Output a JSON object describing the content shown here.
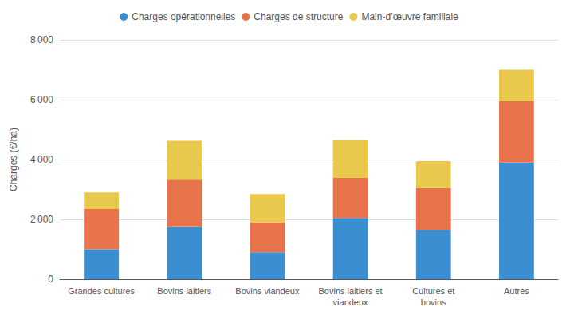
{
  "chart_data": {
    "type": "bar",
    "stacked": true,
    "ylabel": "Charges (€/ha)",
    "categories": [
      "Grandes cultures",
      "Bovins laitiers",
      "Bovins viandeux",
      "Bovins laitiers et\nviandeux",
      "Cultures et\nbovins",
      "Autres"
    ],
    "series": [
      {
        "name": "Charges opérationnelles",
        "color": "#3B8ED0",
        "values": [
          1000,
          1750,
          900,
          2050,
          1650,
          3900
        ]
      },
      {
        "name": "Charges de structure",
        "color": "#E8724A",
        "values": [
          1350,
          1580,
          1000,
          1340,
          1400,
          2050
        ]
      },
      {
        "name": "Main-d’œuvre familiale",
        "color": "#E8C94D",
        "values": [
          550,
          1300,
          950,
          1260,
          900,
          1050
        ]
      }
    ],
    "ylim": [
      0,
      8000
    ],
    "yticks": [
      0,
      {
        "value": 2000,
        "label": "2 000"
      },
      {
        "value": 4000,
        "label": "4 000"
      },
      {
        "value": 6000,
        "label": "6 000"
      },
      {
        "value": 8000,
        "label": "8 000"
      }
    ],
    "grid": true,
    "legend": "top"
  }
}
